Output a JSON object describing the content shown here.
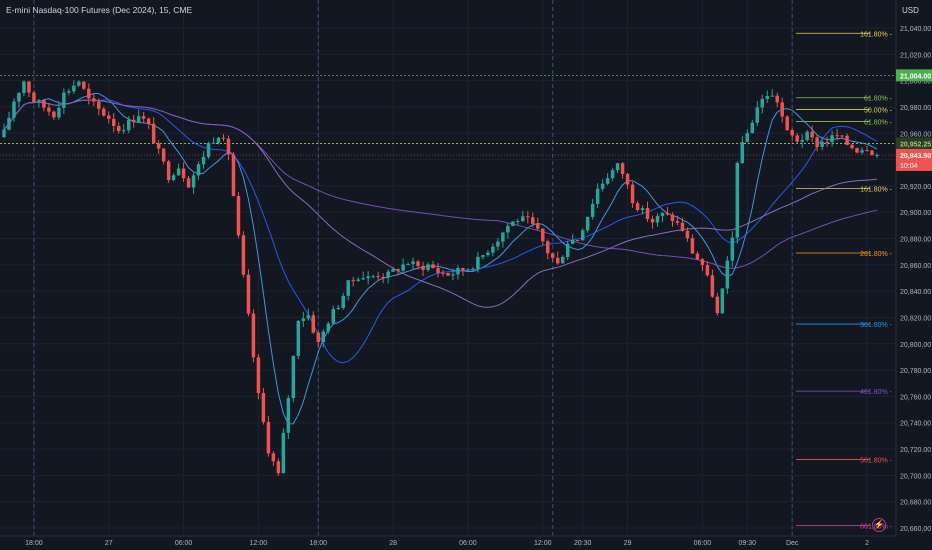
{
  "header": {
    "title": "E-mini Nasdaq-100 Futures (Dec 2024), 15, CME",
    "currency": "USD"
  },
  "colors": {
    "background": "#131722",
    "up": "#26a69a",
    "down": "#ef5350",
    "grid": "#1e222d",
    "axis_text": "#b2b5be",
    "high_line": "#4caf50",
    "last_price": "#ef5350",
    "prev_close": "#9ccc65",
    "ma_light_blue": "#42a5f5",
    "ma_blue": "#2962ff",
    "ma_lavender": "#9575cd",
    "ma_purple": "#7e57c2"
  },
  "icons": {
    "session_flash": "lightning-icon"
  },
  "chart_data": {
    "type": "candlestick",
    "title": "E-mini Nasdaq-100 Futures (Dec 2024), 15, CME",
    "ylim": [
      20650,
      21050
    ],
    "y_ticks": [
      "21,040.00",
      "21,020.00",
      "21,000.00",
      "20,980.00",
      "20,960.00",
      "20,940.00",
      "20,920.00",
      "20,900.00",
      "20,880.00",
      "20,860.00",
      "20,840.00",
      "20,820.00",
      "20,800.00",
      "20,780.00",
      "20,760.00",
      "20,740.00",
      "20,720.00",
      "20,700.00",
      "20,680.00",
      "20,660.00"
    ],
    "y_tick_values": [
      21040,
      21020,
      21000,
      20980,
      20960,
      20940,
      20920,
      20900,
      20880,
      20860,
      20840,
      20820,
      20800,
      20780,
      20760,
      20740,
      20720,
      20700,
      20680,
      20660
    ],
    "x_ticks": [
      {
        "label": "18:00",
        "bar": 6
      },
      {
        "label": "27",
        "bar": 21
      },
      {
        "label": "06:00",
        "bar": 36
      },
      {
        "label": "12:00",
        "bar": 51
      },
      {
        "label": "18:00",
        "bar": 63
      },
      {
        "label": "28",
        "bar": 78
      },
      {
        "label": "06:00",
        "bar": 93
      },
      {
        "label": "12:00",
        "bar": 108
      },
      {
        "label": "20:30",
        "bar": 116
      },
      {
        "label": "29",
        "bar": 125
      },
      {
        "label": "06:00",
        "bar": 140
      },
      {
        "label": "09:30",
        "bar": 149
      },
      {
        "label": "Dec",
        "bar": 158
      },
      {
        "label": "2",
        "bar": 173
      }
    ],
    "session_breaks": [
      6,
      63,
      110,
      158
    ],
    "grid": true,
    "horizontal_lines": [
      {
        "name": "high",
        "value": 21004,
        "label": "21,004.00"
      },
      {
        "name": "prev_close",
        "value": 20952.25,
        "label": "20,952.25"
      }
    ],
    "last_price": {
      "value": 20943.5,
      "label": "20,943.50",
      "countdown": "10:04"
    },
    "fibonacci_levels": [
      {
        "label": "161.80%",
        "value": 21036,
        "color": "#e5d25c"
      },
      {
        "label": "61.80%",
        "value": 20987,
        "color": "#8bc34a"
      },
      {
        "label": "50.00%",
        "value": 20978,
        "color": "#cddc39"
      },
      {
        "label": "61.80%",
        "value": 20969,
        "color": "#8bc34a"
      },
      {
        "label": "161.80%",
        "value": 20918,
        "color": "#e5d25c"
      },
      {
        "label": "261.80%",
        "value": 20869,
        "color": "#ff9800"
      },
      {
        "label": "361.80%",
        "value": 20815,
        "color": "#2196f3"
      },
      {
        "label": "461.80%",
        "value": 20764,
        "color": "#7e57c2"
      },
      {
        "label": "561.80%",
        "value": 20712,
        "color": "#ef5350"
      },
      {
        "label": "661.80%",
        "value": 20662,
        "color": "#e040a0"
      }
    ],
    "close_path": [
      [
        0,
        20960
      ],
      [
        2,
        20985
      ],
      [
        4,
        21000
      ],
      [
        6,
        20985
      ],
      [
        8,
        20980
      ],
      [
        10,
        20975
      ],
      [
        12,
        20990
      ],
      [
        14,
        20997
      ],
      [
        15,
        21000
      ],
      [
        17,
        20985
      ],
      [
        19,
        20978
      ],
      [
        21,
        20972
      ],
      [
        23,
        20963
      ],
      [
        25,
        20968
      ],
      [
        27,
        20975
      ],
      [
        29,
        20965
      ],
      [
        31,
        20945
      ],
      [
        33,
        20928
      ],
      [
        35,
        20935
      ],
      [
        37,
        20922
      ],
      [
        39,
        20935
      ],
      [
        41,
        20952
      ],
      [
        43,
        20960
      ],
      [
        45,
        20945
      ],
      [
        47,
        20880
      ],
      [
        49,
        20820
      ],
      [
        50,
        20790
      ],
      [
        51,
        20760
      ],
      [
        53,
        20720
      ],
      [
        55,
        20700
      ],
      [
        57,
        20760
      ],
      [
        59,
        20820
      ],
      [
        61,
        20822
      ],
      [
        63,
        20800
      ],
      [
        65,
        20818
      ],
      [
        67,
        20830
      ],
      [
        69,
        20845
      ],
      [
        71,
        20852
      ],
      [
        73,
        20850
      ],
      [
        75,
        20853
      ],
      [
        77,
        20852
      ],
      [
        79,
        20858
      ],
      [
        81,
        20862
      ],
      [
        83,
        20858
      ],
      [
        85,
        20860
      ],
      [
        87,
        20855
      ],
      [
        89,
        20853
      ],
      [
        91,
        20855
      ],
      [
        93,
        20858
      ],
      [
        95,
        20863
      ],
      [
        97,
        20872
      ],
      [
        99,
        20880
      ],
      [
        101,
        20890
      ],
      [
        103,
        20895
      ],
      [
        105,
        20893
      ],
      [
        107,
        20885
      ],
      [
        109,
        20870
      ],
      [
        111,
        20860
      ],
      [
        113,
        20878
      ],
      [
        115,
        20880
      ],
      [
        117,
        20898
      ],
      [
        119,
        20918
      ],
      [
        121,
        20928
      ],
      [
        123,
        20935
      ],
      [
        124,
        20930
      ],
      [
        126,
        20910
      ],
      [
        128,
        20900
      ],
      [
        130,
        20893
      ],
      [
        132,
        20898
      ],
      [
        134,
        20895
      ],
      [
        136,
        20887
      ],
      [
        138,
        20870
      ],
      [
        140,
        20860
      ],
      [
        142,
        20838
      ],
      [
        143,
        20822
      ],
      [
        144,
        20840
      ],
      [
        146,
        20880
      ],
      [
        147,
        20940
      ],
      [
        149,
        20960
      ],
      [
        151,
        20980
      ],
      [
        153,
        20990
      ],
      [
        155,
        20985
      ],
      [
        157,
        20960
      ],
      [
        159,
        20955
      ],
      [
        161,
        20958
      ],
      [
        163,
        20952
      ],
      [
        165,
        20955
      ],
      [
        167,
        20958
      ],
      [
        169,
        20952
      ],
      [
        171,
        20948
      ],
      [
        173,
        20950
      ],
      [
        175,
        20943.5
      ]
    ],
    "candles": [],
    "series": [
      {
        "name": "",
        "color": "#42a5f5",
        "period": 8
      },
      {
        "name": "",
        "color": "#2962ff",
        "period": 20
      },
      {
        "name": "",
        "color": "#9575cd",
        "period": 50
      },
      {
        "name": "",
        "color": "#7e57c2",
        "period": 100
      }
    ]
  }
}
